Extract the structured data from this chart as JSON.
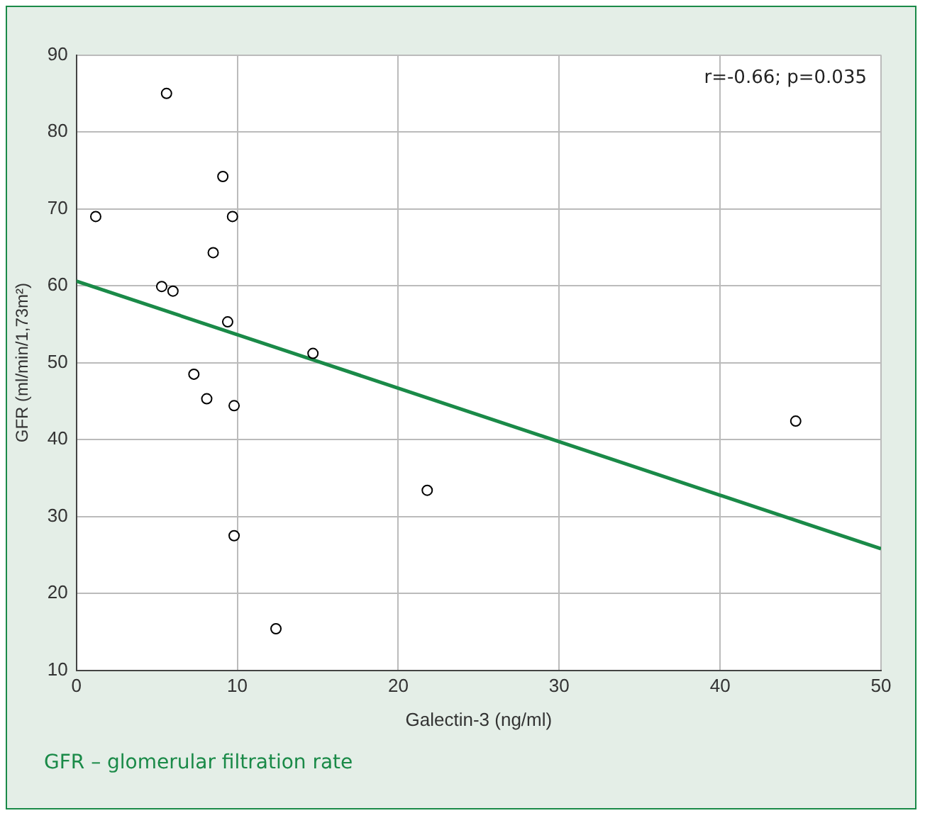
{
  "chart_data": {
    "type": "scatter",
    "xlabel": "Galectin-3 (ng/ml)",
    "ylabel": "GFR (ml/min/1,73m²)",
    "xlim": [
      0,
      50
    ],
    "xticks": [
      0,
      10,
      20,
      30,
      40,
      50
    ],
    "ylim": [
      10,
      90
    ],
    "yticks": [
      10,
      20,
      30,
      40,
      50,
      60,
      70,
      80,
      90
    ],
    "grid": true,
    "legend": false,
    "series": [
      {
        "marker": "circle",
        "color": "#000000",
        "x": [
          1.2,
          5.6,
          9.1,
          9.7,
          8.5,
          5.3,
          6.0,
          9.4,
          14.7,
          7.3,
          8.1,
          9.8,
          21.8,
          9.8,
          12.4,
          44.7
        ],
        "values": [
          69.0,
          85.0,
          74.2,
          69.0,
          64.3,
          59.9,
          59.3,
          55.3,
          51.2,
          48.5,
          45.3,
          44.4,
          33.4,
          27.5,
          15.4,
          42.4
        ]
      },
      {
        "type": "line",
        "marker": "none",
        "color": "#1a8a48",
        "x": [
          0,
          50
        ],
        "values": [
          60.6,
          25.8
        ]
      }
    ],
    "annotations": [
      "r=-0.66; p=0.035",
      "GFR – glomerular filtration rate"
    ]
  }
}
